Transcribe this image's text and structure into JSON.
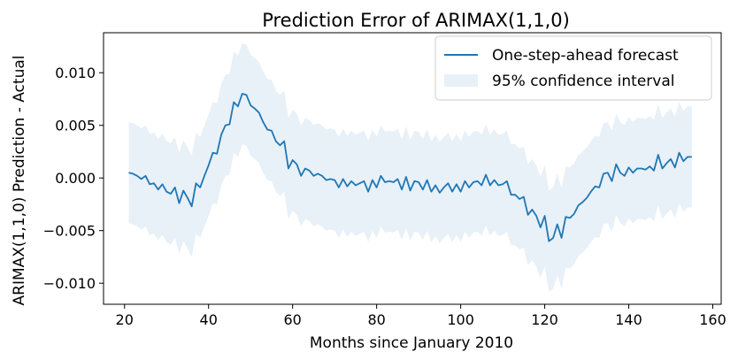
{
  "chart_data": {
    "type": "line",
    "title": "Prediction Error of ARIMAX(1,1,0)",
    "xlabel": "Months since January 2010",
    "ylabel": "ARIMAX(1,1,0) Prediction - Actual",
    "xlim": [
      15,
      162
    ],
    "ylim": [
      -0.012,
      0.0138
    ],
    "xticks": [
      20,
      40,
      60,
      80,
      100,
      120,
      140,
      160
    ],
    "yticks": [
      -0.01,
      -0.005,
      0.0,
      0.005,
      0.01
    ],
    "xtick_labels": [
      "20",
      "40",
      "60",
      "80",
      "100",
      "120",
      "140",
      "160"
    ],
    "ytick_labels": [
      "−0.010",
      "−0.005",
      "0.000",
      "0.005",
      "0.010"
    ],
    "legend_position": "top-right",
    "grid": false,
    "series": [
      {
        "name": "One-step-ahead forecast",
        "color": "#1f77b4",
        "x": [
          21,
          22,
          23,
          24,
          25,
          26,
          27,
          28,
          29,
          30,
          31,
          32,
          33,
          34,
          35,
          36,
          37,
          38,
          39,
          40,
          41,
          42,
          43,
          44,
          45,
          46,
          47,
          48,
          49,
          50,
          51,
          52,
          53,
          54,
          55,
          56,
          57,
          58,
          59,
          60,
          61,
          62,
          63,
          64,
          65,
          66,
          67,
          68,
          69,
          70,
          71,
          72,
          73,
          74,
          75,
          76,
          77,
          78,
          79,
          80,
          81,
          82,
          83,
          84,
          85,
          86,
          87,
          88,
          89,
          90,
          91,
          92,
          93,
          94,
          95,
          96,
          97,
          98,
          99,
          100,
          101,
          102,
          103,
          104,
          105,
          106,
          107,
          108,
          109,
          110,
          111,
          112,
          113,
          114,
          115,
          116,
          117,
          118,
          119,
          120,
          121,
          122,
          123,
          124,
          125,
          126,
          127,
          128,
          129,
          130,
          131,
          132,
          133,
          134,
          135,
          136,
          137,
          138,
          139,
          140,
          141,
          142,
          143,
          144,
          145,
          146,
          147,
          148,
          149,
          150,
          151,
          152,
          153,
          154,
          155
        ],
        "y": [
          0.0005,
          0.0004,
          0.0002,
          -0.0001,
          0.0002,
          -0.0006,
          -0.0005,
          -0.0011,
          -0.0006,
          -0.0013,
          -0.0015,
          -0.0009,
          -0.0024,
          -0.0012,
          -0.0019,
          -0.0027,
          -0.0005,
          -0.0009,
          0.0002,
          0.0012,
          0.0024,
          0.0023,
          0.0041,
          0.005,
          0.0051,
          0.0072,
          0.0068,
          0.008,
          0.0079,
          0.0069,
          0.0066,
          0.0062,
          0.0053,
          0.0046,
          0.0045,
          0.0035,
          0.0031,
          0.0035,
          0.0009,
          0.0017,
          0.0013,
          0.0002,
          0.0009,
          0.0007,
          0.0002,
          0.0004,
          0.0002,
          -0.0002,
          -0.0001,
          -0.0002,
          -0.0009,
          -0.0001,
          -0.0008,
          -0.0003,
          -0.0007,
          -0.0005,
          -0.0003,
          -0.0013,
          -0.0002,
          -0.0009,
          0.0002,
          -0.0004,
          -0.0003,
          -0.0004,
          -0.0001,
          -0.0011,
          0.0001,
          -0.0012,
          -0.0003,
          -0.0004,
          -0.0011,
          -0.0002,
          -0.0013,
          -0.0007,
          -0.0014,
          -0.0009,
          -0.0005,
          -0.0013,
          -0.0006,
          -0.0013,
          -0.0003,
          -0.0009,
          -0.0004,
          -0.0003,
          -0.0007,
          0.0003,
          -0.0007,
          -0.0002,
          -0.0007,
          -0.0006,
          -0.0003,
          -0.0016,
          -0.0016,
          -0.002,
          -0.0018,
          -0.0035,
          -0.003,
          -0.0036,
          -0.0047,
          -0.0036,
          -0.006,
          -0.0057,
          -0.0044,
          -0.0057,
          -0.0037,
          -0.0038,
          -0.0034,
          -0.0026,
          -0.0023,
          -0.0019,
          -0.0013,
          -0.0008,
          -0.0009,
          0.0004,
          0.0005,
          -0.0003,
          0.0013,
          0.0005,
          0.0002,
          0.001,
          0.0005,
          0.0009,
          0.0009,
          0.0008,
          0.0011,
          0.0007,
          0.0022,
          0.0009,
          0.0014,
          0.0018,
          0.001,
          0.0024,
          0.0016,
          0.002,
          0.002
        ]
      },
      {
        "name": "95% confidence interval",
        "color": "#e8f0f8",
        "type": "area",
        "band_offset_low": -0.0048,
        "band_offset_high": 0.0048
      }
    ]
  }
}
